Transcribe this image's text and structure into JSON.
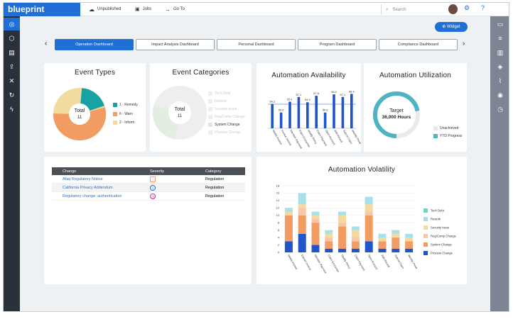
{
  "header": {
    "logo": "blueprint",
    "unpublished": "Unpublished",
    "jobs": "Jobs",
    "goto": "Go To",
    "search_placeholder": "Search"
  },
  "widget_button": "Widget",
  "tabs": [
    "Operation Dashboard",
    "Impact Analysis Dashboard",
    "Personal Dashboard",
    "Program Dashboard",
    "Compliance Dashboard"
  ],
  "event_types": {
    "title": "Event Types",
    "center_label": "Total",
    "center_value": "11",
    "legend": [
      {
        "label": "1 - Remedy",
        "color": "#17a3a3"
      },
      {
        "label": "6 - Warn",
        "color": "#f29b62"
      },
      {
        "label": "2 - Inform",
        "color": "#f1dba0"
      }
    ]
  },
  "event_categories": {
    "title": "Event Categories",
    "center_label": "Total",
    "center_value": "11",
    "legend": [
      "Tech Debt",
      "Rework",
      "Security Issue",
      "Reg/Comp Change",
      "System Change",
      "Process Change"
    ]
  },
  "automation_availability": {
    "title": "Automation Availability",
    "categories": [
      "Media Invoice",
      "Invoice Invoice",
      "Member Payment",
      "Claim Encounter",
      "Modify Policy",
      "Claim Payment",
      "Open Account",
      "Add Record",
      "Submit Claim",
      "Identity Proof"
    ],
    "values": [
      54.2,
      50.6,
      55.1,
      57.1,
      54.9,
      57.6,
      50.6,
      58.2,
      57.1,
      58.4
    ],
    "value_labels": [
      "54.2",
      "50.6",
      "55.1",
      "57.1",
      "54.9",
      "57.6",
      "50.6",
      "58.2",
      "57.1",
      "58.4"
    ]
  },
  "automation_utilization": {
    "title": "Automation Utilization",
    "center_label": "Target",
    "center_value": "36,000 Hours",
    "progress": 0.72,
    "legend": [
      {
        "label": "Unachieved",
        "color": "#e8e8e8"
      },
      {
        "label": "YTD Progress",
        "color": "#4fb3c4"
      }
    ]
  },
  "events_table": {
    "headers": [
      "Change",
      "Severity",
      "Category"
    ],
    "rows": [
      {
        "change": "Afaq Regulatory Notice",
        "severity": "warn",
        "category": "Regulation"
      },
      {
        "change": "California Privacy Addendum",
        "severity": "info",
        "category": "Regulation"
      },
      {
        "change": "Regulatory change: authentication",
        "severity": "remedy",
        "category": "Regulation"
      }
    ]
  },
  "automation_volatility": {
    "title": "Automation Volatility",
    "chart_data": {
      "type": "bar",
      "stacked": true,
      "ylim": [
        0,
        18
      ],
      "yticks": [
        0,
        2,
        4,
        6,
        8,
        10,
        12,
        14,
        16,
        18
      ],
      "categories": [
        "Media Invoice",
        "Extract Invoice",
        "Member Payment",
        "Claim Encounter",
        "Modify Policy",
        "Claim Payment",
        "Open Account",
        "Add Record",
        "Submit Claim",
        "Identity Proof"
      ],
      "series": [
        {
          "name": "Tech Debt",
          "color": "#6fd3c4",
          "values": [
            0,
            0,
            0,
            0,
            0,
            0,
            0,
            0,
            0,
            0
          ]
        },
        {
          "name": "Rework",
          "color": "#a7e0e8",
          "values": [
            1,
            3,
            1,
            1,
            1,
            1,
            2,
            1,
            1,
            1
          ]
        },
        {
          "name": "Security Issue",
          "color": "#f4d9a0",
          "values": [
            1,
            1,
            1,
            1,
            2,
            2,
            2,
            1,
            1,
            1
          ]
        },
        {
          "name": "Reg/Comp Change",
          "color": "#f7c7a8",
          "values": [
            0,
            2,
            1,
            1,
            1,
            1,
            1,
            0,
            0,
            0
          ]
        },
        {
          "name": "System Change",
          "color": "#f29b62",
          "values": [
            7,
            5,
            6,
            2,
            6,
            2,
            7,
            2,
            3,
            2
          ]
        },
        {
          "name": "Process Change",
          "color": "#1f55c9",
          "values": [
            3,
            5,
            2,
            1,
            1,
            1,
            3,
            1,
            1,
            1
          ]
        }
      ]
    }
  }
}
